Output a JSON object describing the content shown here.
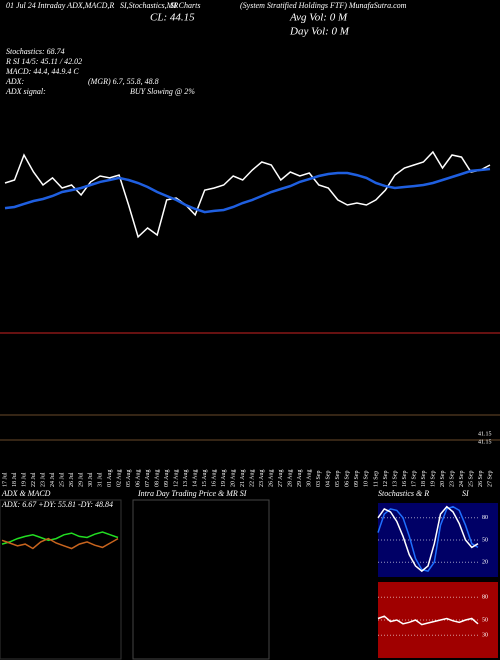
{
  "header": {
    "line1": "01 Jul 24 Intraday ADX,MACD,R",
    "line2": "SI,Stochastics,MR",
    "line3": "SI Charts",
    "company": "(System Stratified Holdings FTF) MunafaSutra.com",
    "close": "CL: 44.15",
    "avg_vol": "Avg Vol: 0  M",
    "day_vol": "Day Vol: 0   M",
    "stochastics": "Stochastics: 68.74",
    "rsi": "R SI 14/5: 45.11 / 42.02",
    "macd": "MACD: 44.4, 44.9.4 C",
    "adx": "ADX:",
    "mgr": "(MGR) 6.7, 55.8, 48.8",
    "adx_signal": "ADX  signal:",
    "signal": "BUY Slowing @ 2%",
    "level1": "41.15",
    "level2": "41.15"
  },
  "intraday_panel": {
    "title": "Intra  Day Trading Price  & MR SI"
  },
  "chart_data": [
    {
      "type": "line",
      "x": [
        "17 Jul",
        "18 Jul",
        "19 Jul",
        "22 Jul",
        "23 Jul",
        "24 Jul",
        "25 Jul",
        "26 Jul",
        "29 Jul",
        "30 Jul",
        "31 Jul",
        "01 Aug",
        "02 Aug",
        "05 Aug",
        "06 Aug",
        "07 Aug",
        "08 Aug",
        "09 Aug",
        "12 Aug",
        "13 Aug",
        "14 Aug",
        "15 Aug",
        "16 Aug",
        "19 Aug",
        "20 Aug",
        "21 Aug",
        "22 Aug",
        "23 Aug",
        "26 Aug",
        "27 Aug",
        "28 Aug",
        "29 Aug",
        "30 Aug",
        "03 Sep",
        "04 Sep",
        "05 Sep",
        "06 Sep",
        "09 Sep",
        "10 Sep",
        "11 Sep",
        "12 Sep",
        "13 Sep",
        "16 Sep",
        "17 Sep",
        "18 Sep",
        "19 Sep",
        "20 Sep",
        "23 Sep",
        "24 Sep",
        "25 Sep",
        "26 Sep",
        "27 Sep"
      ],
      "ylim": [
        40,
        48
      ],
      "series": [
        {
          "color": "#ffffff",
          "values": [
            44.87,
            45.09,
            46.91,
            45.67,
            44.73,
            45.24,
            44.51,
            44.73,
            44.0,
            44.95,
            45.38,
            45.24,
            45.45,
            43.27,
            40.95,
            41.6,
            41.09,
            43.64,
            43.78,
            43.27,
            42.55,
            44.36,
            44.51,
            44.73,
            45.38,
            45.09,
            45.82,
            46.4,
            46.18,
            45.09,
            45.67,
            45.38,
            45.6,
            44.73,
            44.51,
            43.64,
            43.27,
            43.42,
            43.27,
            43.64,
            44.36,
            45.45,
            45.96,
            46.18,
            46.4,
            47.13,
            45.96,
            46.91,
            46.76,
            45.67,
            45.82,
            46.18
          ]
        },
        {
          "color": "#1f5fe0",
          "values": [
            43.05,
            43.13,
            43.35,
            43.56,
            43.71,
            43.93,
            44.22,
            44.36,
            44.51,
            44.73,
            44.95,
            45.09,
            45.24,
            45.09,
            44.87,
            44.58,
            44.22,
            43.93,
            43.64,
            43.27,
            42.98,
            42.76,
            42.84,
            42.91,
            43.13,
            43.42,
            43.64,
            43.93,
            44.22,
            44.44,
            44.65,
            44.95,
            45.16,
            45.38,
            45.53,
            45.6,
            45.6,
            45.45,
            45.24,
            44.87,
            44.65,
            44.51,
            44.58,
            44.65,
            44.73,
            44.87,
            45.09,
            45.31,
            45.53,
            45.75,
            45.82,
            45.89
          ]
        }
      ]
    },
    {
      "type": "line",
      "title": "ADX  & MACD",
      "subtitle": "ADX: 6.67  +DY: 55.81  -DY: 48.84",
      "ylim": [
        0,
        100
      ],
      "series": [
        {
          "color": "#22dd22",
          "values": [
            38,
            42,
            48,
            52,
            55,
            50,
            45,
            48,
            55,
            58,
            52,
            50,
            56,
            60,
            55,
            50
          ]
        },
        {
          "color": "#c8641e",
          "values": [
            45,
            40,
            35,
            38,
            30,
            42,
            48,
            40,
            35,
            30,
            38,
            42,
            36,
            32,
            40,
            48
          ]
        }
      ]
    },
    {
      "type": "line",
      "title": "Stochastics  & R",
      "subtitle": "SI",
      "background": "#000066",
      "ylim": [
        0,
        100
      ],
      "yticks": [
        80,
        50,
        20
      ],
      "series": [
        {
          "color": "#1f6fff",
          "values": [
            60,
            85,
            92,
            90,
            80,
            55,
            25,
            10,
            8,
            20,
            70,
            92,
            95,
            90,
            70,
            45,
            40
          ]
        },
        {
          "color": "#ffffff",
          "values": [
            80,
            92,
            88,
            75,
            55,
            30,
            15,
            8,
            15,
            45,
            85,
            95,
            88,
            72,
            50,
            40,
            45
          ]
        }
      ]
    },
    {
      "type": "line",
      "background": "#a00000",
      "ylim": [
        0,
        100
      ],
      "yticks": [
        80,
        50,
        30
      ],
      "series": [
        {
          "color": "#ffffff",
          "values": [
            52,
            55,
            48,
            50,
            45,
            47,
            50,
            44,
            46,
            48,
            50,
            52,
            49,
            47,
            50,
            52,
            45
          ]
        }
      ]
    }
  ]
}
